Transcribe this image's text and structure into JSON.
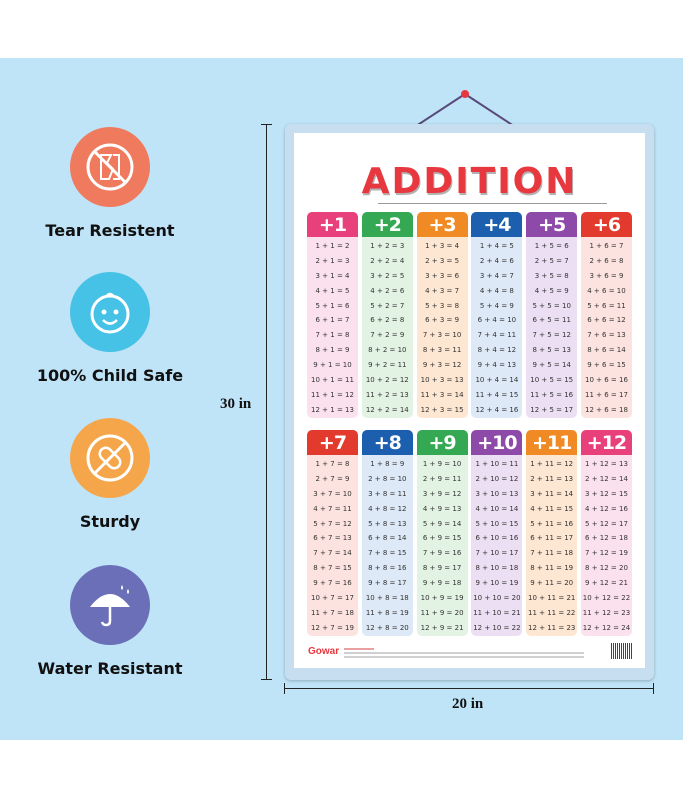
{
  "features": [
    {
      "label": "Tear Resistent",
      "icon": "torn-paper-icon"
    },
    {
      "label": "100% Child Safe",
      "icon": "baby-face-icon"
    },
    {
      "label": "Sturdy",
      "icon": "bandage-icon"
    },
    {
      "label": "Water Resistant",
      "icon": "umbrella-icon"
    }
  ],
  "dimensions": {
    "height": "30 in",
    "width": "20 in"
  },
  "poster": {
    "title": "ADDITION",
    "brand": "Gowar",
    "colors": {
      "c1": "#e8407a",
      "c2": "#35a853",
      "c3": "#f08a24",
      "c4": "#1c5fae",
      "c5": "#8e4aa8",
      "c6": "#e33a2e",
      "c7": "#e33a2e",
      "c8": "#1c5fae",
      "c9": "#35a853",
      "c10": "#8e4aa8",
      "c11": "#f08a24",
      "c12": "#e8407a"
    },
    "tables": [
      {
        "header": "+1",
        "rows": [
          "1 + 1 =  2",
          "2 + 1 =  3",
          "3 + 1 =  4",
          "4 + 1 =  5",
          "5 + 1 =  6",
          "6 + 1 =  7",
          "7 + 1 =  8",
          "8 + 1 =  9",
          "9 + 1 = 10",
          "10 + 1 = 11",
          "11 + 1 = 12",
          "12 + 1 = 13"
        ]
      },
      {
        "header": "+2",
        "rows": [
          "1 + 2 =  3",
          "2 + 2 =  4",
          "3 + 2 =  5",
          "4 + 2 =  6",
          "5 + 2 =  7",
          "6 + 2 =  8",
          "7 + 2 =  9",
          "8 + 2 = 10",
          "9 + 2 = 11",
          "10 + 2 = 12",
          "11 + 2 = 13",
          "12 + 2 = 14"
        ]
      },
      {
        "header": "+3",
        "rows": [
          "1 + 3 =  4",
          "2 + 3 =  5",
          "3 + 3 =  6",
          "4 + 3 =  7",
          "5 + 3 =  8",
          "6 + 3 =  9",
          "7 + 3 = 10",
          "8 + 3 = 11",
          "9 + 3 = 12",
          "10 + 3 = 13",
          "11 + 3 = 14",
          "12 + 3 = 15"
        ]
      },
      {
        "header": "+4",
        "rows": [
          "1 + 4 =  5",
          "2 + 4 =  6",
          "3 + 4 =  7",
          "4 + 4 =  8",
          "5 + 4 =  9",
          "6 + 4 = 10",
          "7 + 4 = 11",
          "8 + 4 = 12",
          "9 + 4 = 13",
          "10 + 4 = 14",
          "11 + 4 = 15",
          "12 + 4 = 16"
        ]
      },
      {
        "header": "+5",
        "rows": [
          "1 + 5 =  6",
          "2 + 5 =  7",
          "3 + 5 =  8",
          "4 + 5 =  9",
          "5 + 5 = 10",
          "6 + 5 = 11",
          "7 + 5 = 12",
          "8 + 5 = 13",
          "9 + 5 = 14",
          "10 + 5 = 15",
          "11 + 5 = 16",
          "12 + 5 = 17"
        ]
      },
      {
        "header": "+6",
        "rows": [
          "1 + 6 =  7",
          "2 + 6 =  8",
          "3 + 6 =  9",
          "4 + 6 = 10",
          "5 + 6 = 11",
          "6 + 6 = 12",
          "7 + 6 = 13",
          "8 + 6 = 14",
          "9 + 6 = 15",
          "10 + 6 = 16",
          "11 + 6 = 17",
          "12 + 6 = 18"
        ]
      },
      {
        "header": "+7",
        "rows": [
          "1 + 7 =  8",
          "2 + 7 =  9",
          "3 + 7 = 10",
          "4 + 7 = 11",
          "5 + 7 = 12",
          "6 + 7 = 13",
          "7 + 7 = 14",
          "8 + 7 = 15",
          "9 + 7 = 16",
          "10 + 7 = 17",
          "11 + 7 = 18",
          "12 + 7 = 19"
        ]
      },
      {
        "header": "+8",
        "rows": [
          "1 + 8 =  9",
          "2 + 8 = 10",
          "3 + 8 = 11",
          "4 + 8 = 12",
          "5 + 8 = 13",
          "6 + 8 = 14",
          "7 + 8 = 15",
          "8 + 8 = 16",
          "9 + 8 = 17",
          "10 + 8 = 18",
          "11 + 8 = 19",
          "12 + 8 = 20"
        ]
      },
      {
        "header": "+9",
        "rows": [
          "1 + 9 = 10",
          "2 + 9 = 11",
          "3 + 9 = 12",
          "4 + 9 = 13",
          "5 + 9 = 14",
          "6 + 9 = 15",
          "7 + 9 = 16",
          "8 + 9 = 17",
          "9 + 9 = 18",
          "10 + 9 = 19",
          "11 + 9 = 20",
          "12 + 9 = 21"
        ]
      },
      {
        "header": "+10",
        "rows": [
          "1 + 10 = 11",
          "2 + 10 = 12",
          "3 + 10 = 13",
          "4 + 10 = 14",
          "5 + 10 = 15",
          "6 + 10 = 16",
          "7 + 10 = 17",
          "8 + 10 = 18",
          "9 + 10 = 19",
          "10 + 10 = 20",
          "11 + 10 = 21",
          "12 + 10 = 22"
        ]
      },
      {
        "header": "+11",
        "rows": [
          "1 + 11 = 12",
          "2 + 11 = 13",
          "3 + 11 = 14",
          "4 + 11 = 15",
          "5 + 11 = 16",
          "6 + 11 = 17",
          "7 + 11 = 18",
          "8 + 11 = 19",
          "9 + 11 = 20",
          "10 + 11 = 21",
          "11 + 11 = 22",
          "12 + 11 = 23"
        ]
      },
      {
        "header": "+12",
        "rows": [
          "1 + 12 = 13",
          "2 + 12 = 14",
          "3 + 12 = 15",
          "4 + 12 = 16",
          "5 + 12 = 17",
          "6 + 12 = 18",
          "7 + 12 = 19",
          "8 + 12 = 20",
          "9 + 12 = 21",
          "10 + 12 = 22",
          "11 + 12 = 23",
          "12 + 12 = 24"
        ]
      }
    ],
    "tints": [
      "#fbe1ee",
      "#e2f3e4",
      "#fde6d2",
      "#dde9f7",
      "#ecdff3",
      "#fde3df",
      "#fde3df",
      "#dde9f7",
      "#e2f3e4",
      "#ecdff3",
      "#fde6d2",
      "#fbe1ee"
    ]
  }
}
